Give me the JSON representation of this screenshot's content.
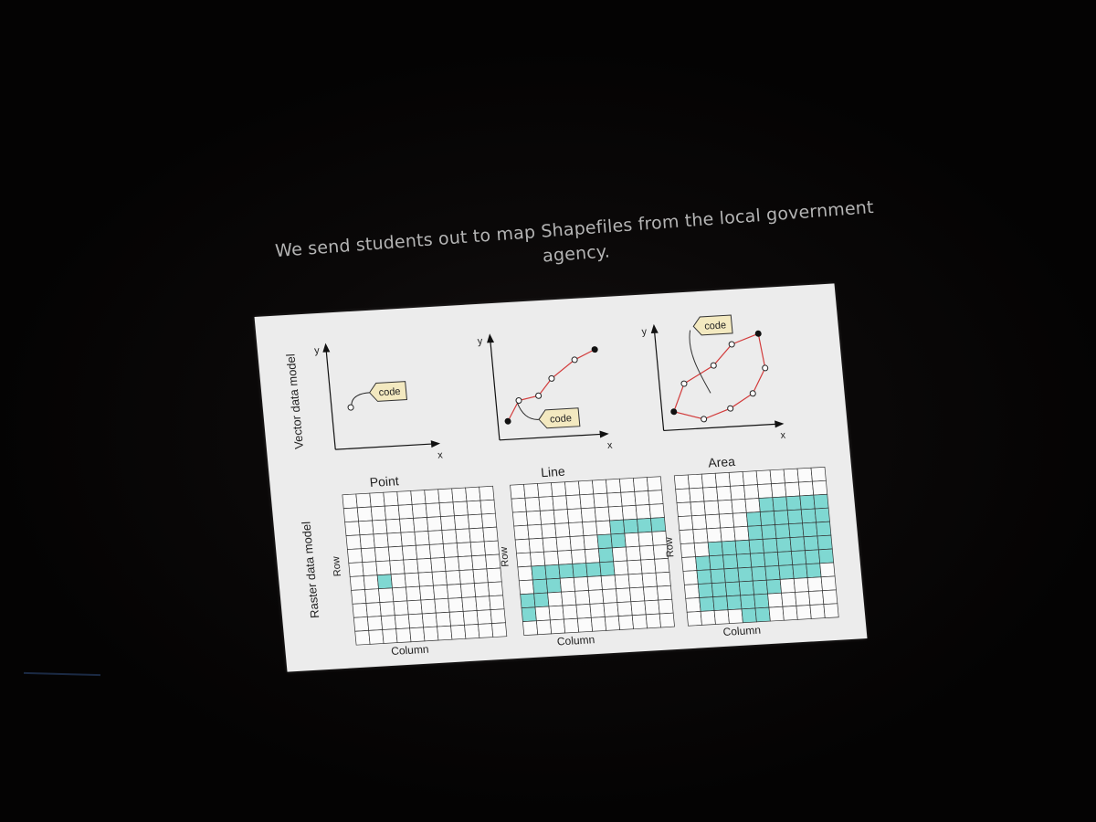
{
  "caption": "We send students out to map Shapefiles from the local government agency.",
  "slide": {
    "row_labels": [
      "Vector data model",
      "Raster data model"
    ],
    "columns": [
      "Point",
      "Line",
      "Area"
    ],
    "axis_x": "x",
    "axis_y": "y",
    "code_tag": "code",
    "raster_row_label": "Row",
    "raster_column_label": "Column"
  },
  "colors": {
    "raster_fill": "#7fd8d2",
    "vector_line": "#d23c3c",
    "slide_bg": "#ececec"
  }
}
